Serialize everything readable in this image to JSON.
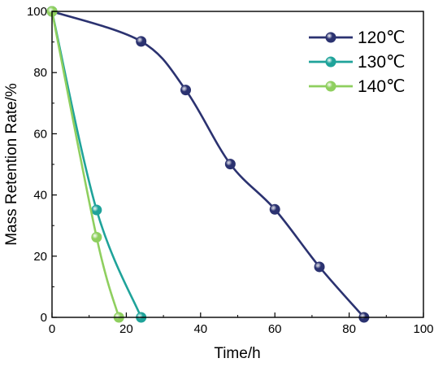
{
  "chart_data": {
    "type": "line",
    "title": "",
    "xlabel": "Time/h",
    "ylabel": "Mass Retention Rate/%",
    "xlim": [
      0,
      100
    ],
    "ylim": [
      0,
      100
    ],
    "xticks": [
      0,
      20,
      40,
      60,
      80,
      100
    ],
    "yticks": [
      0,
      20,
      40,
      60,
      80,
      100
    ],
    "grid": false,
    "legend_position": "top-right",
    "series": [
      {
        "name": "120℃",
        "color": "#2b3270",
        "x": [
          0,
          24,
          36,
          48,
          60,
          72,
          84
        ],
        "y": [
          100,
          90.2,
          74.3,
          50.1,
          35.3,
          16.5,
          0
        ]
      },
      {
        "name": "130℃",
        "color": "#1fa39a",
        "x": [
          0,
          12,
          24
        ],
        "y": [
          100,
          35.1,
          0
        ]
      },
      {
        "name": "140℃",
        "color": "#8fcf5f",
        "x": [
          0,
          12,
          18
        ],
        "y": [
          100,
          26.2,
          0
        ]
      }
    ]
  }
}
